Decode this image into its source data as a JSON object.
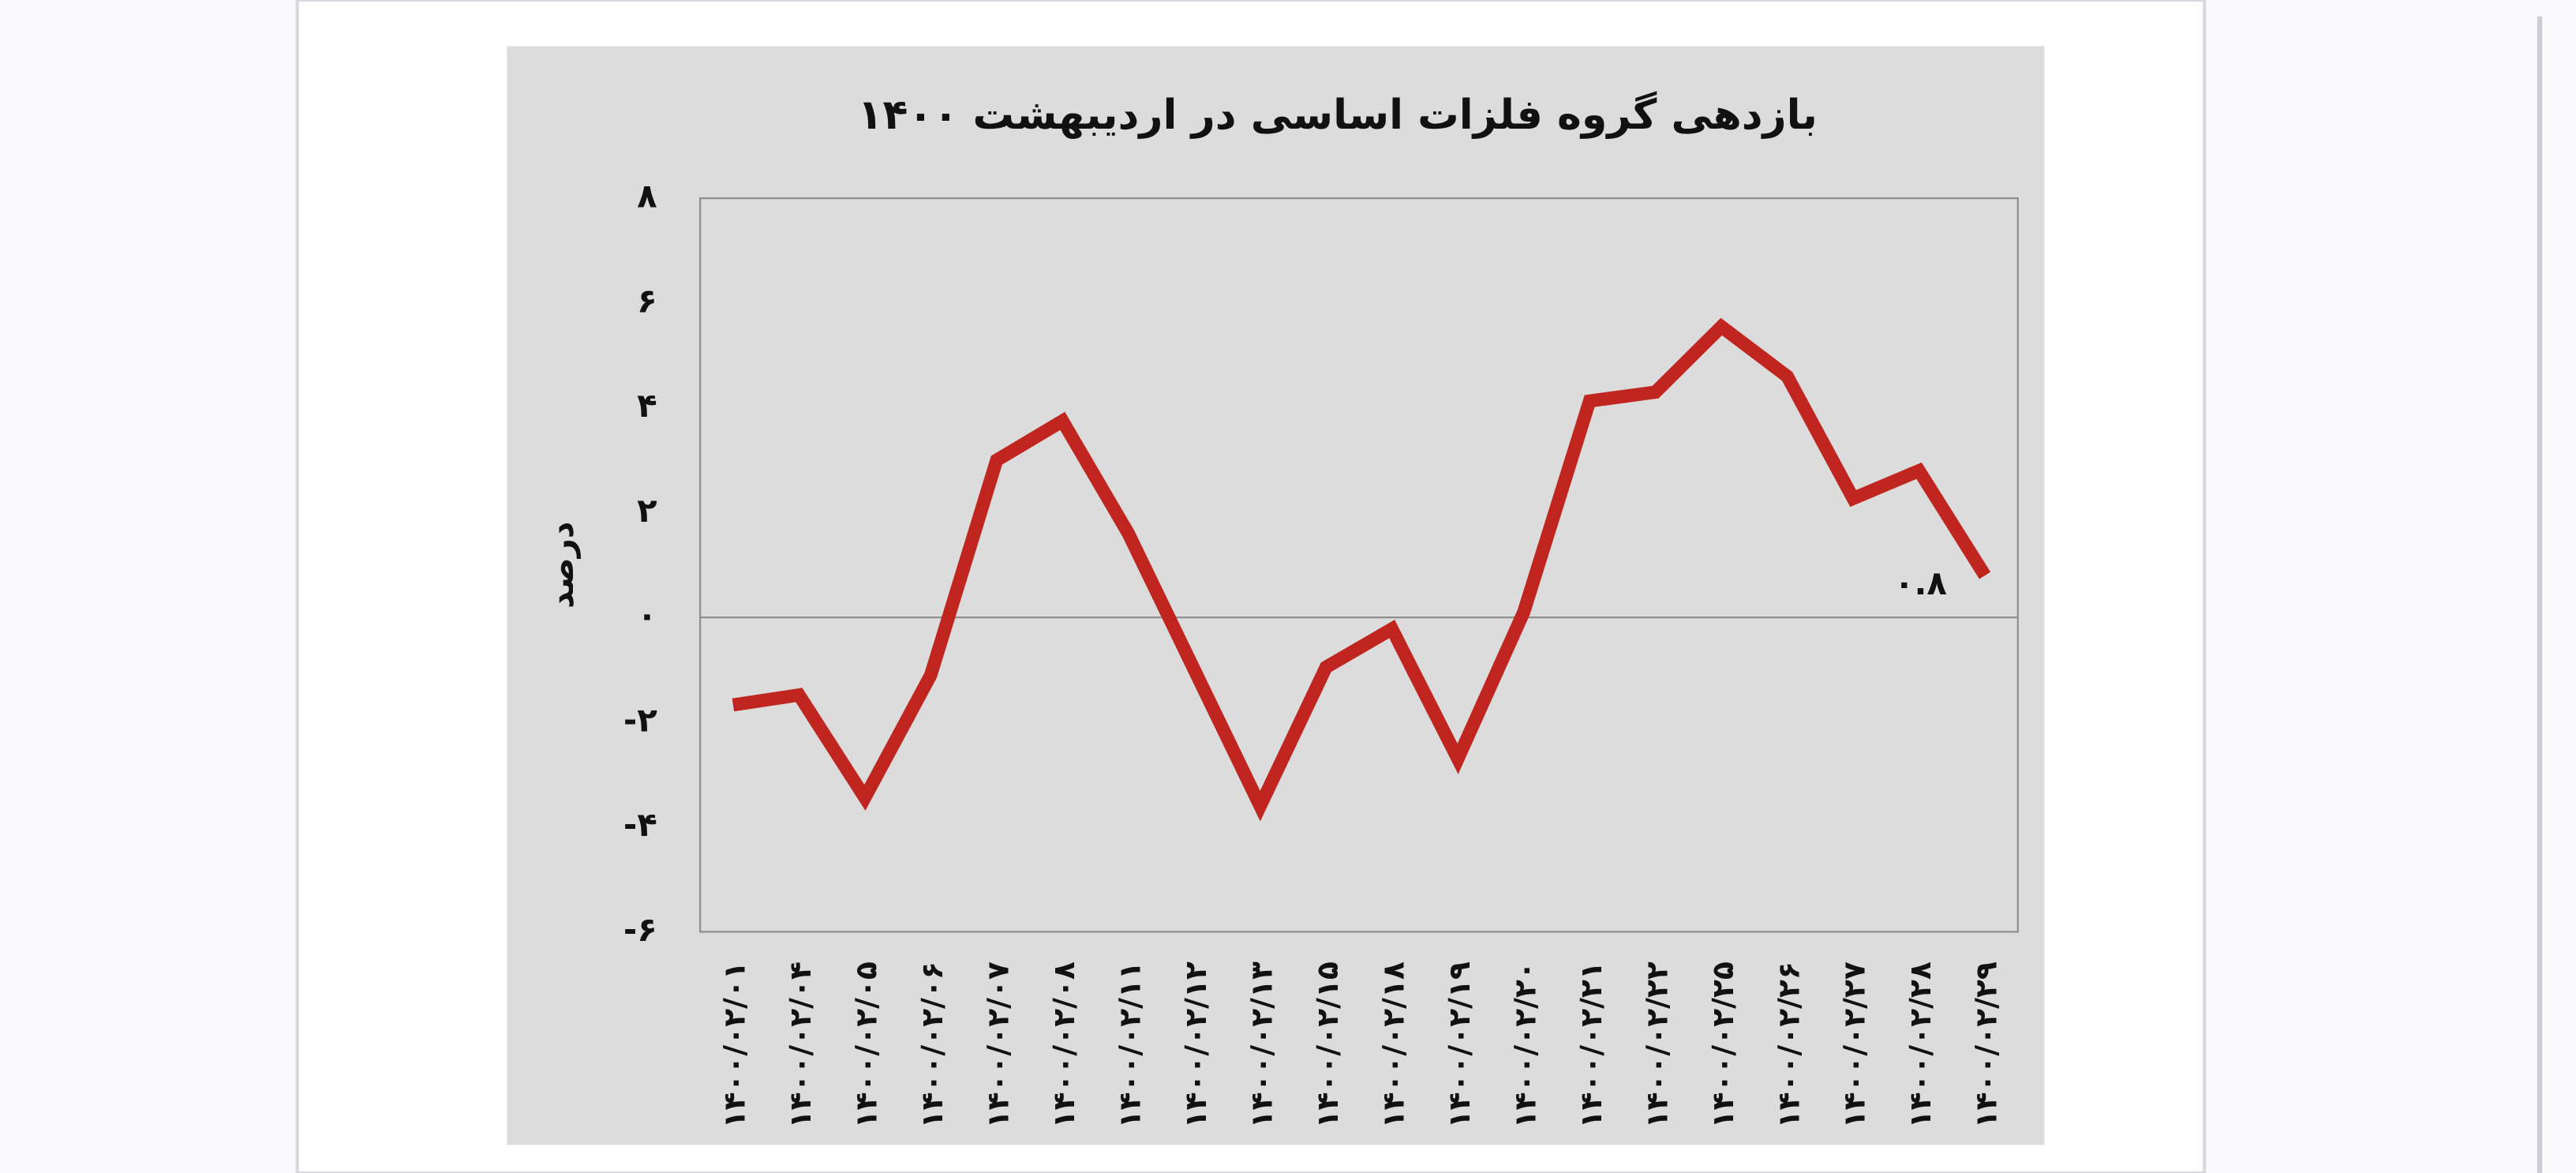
{
  "chart_data": {
    "type": "line",
    "title": "بازدهی گروه فلزات اساسی در اردیبهشت ۱۴۰۰",
    "y_label": "درصد",
    "categories": [
      "۱۴۰۰/۰۲/۰۱",
      "۱۴۰۰/۰۲/۰۴",
      "۱۴۰۰/۰۲/۰۵",
      "۱۴۰۰/۰۲/۰۶",
      "۱۴۰۰/۰۲/۰۷",
      "۱۴۰۰/۰۲/۰۸",
      "۱۴۰۰/۰۲/۱۱",
      "۱۴۰۰/۰۲/۱۲",
      "۱۴۰۰/۰۲/۱۳",
      "۱۴۰۰/۰۲/۱۵",
      "۱۴۰۰/۰۲/۱۸",
      "۱۴۰۰/۰۲/۱۹",
      "۱۴۰۰/۰۲/۲۰",
      "۱۴۰۰/۰۲/۲۱",
      "۱۴۰۰/۰۲/۲۲",
      "۱۴۰۰/۰۲/۲۵",
      "۱۴۰۰/۰۲/۲۶",
      "۱۴۰۰/۰۲/۲۷",
      "۱۴۰۰/۰۲/۲۸",
      "۱۴۰۰/۰۲/۲۹"
    ],
    "values": [
      -1.67,
      -1.48,
      -3.44,
      -1.1,
      3.0,
      3.75,
      1.6,
      -1.0,
      -3.6,
      -0.95,
      -0.22,
      -2.7,
      0.1,
      4.13,
      4.3,
      5.55,
      4.6,
      2.27,
      2.8,
      0.8
    ],
    "value_labels": [
      null,
      null,
      null,
      null,
      null,
      null,
      null,
      null,
      null,
      null,
      null,
      null,
      null,
      null,
      null,
      null,
      null,
      null,
      null,
      "۰.۸"
    ],
    "color": "#c0251f",
    "ylim": [
      -6,
      8
    ],
    "yticks": [
      {
        "value": -6,
        "label": "-۶"
      },
      {
        "value": -4,
        "label": "-۴"
      },
      {
        "value": -2,
        "label": "-۲"
      },
      {
        "value": 0,
        "label": "۰"
      },
      {
        "value": 2,
        "label": "۲"
      },
      {
        "value": 4,
        "label": "۴"
      },
      {
        "value": 6,
        "label": "۶"
      },
      {
        "value": 8,
        "label": "۸"
      }
    ]
  }
}
